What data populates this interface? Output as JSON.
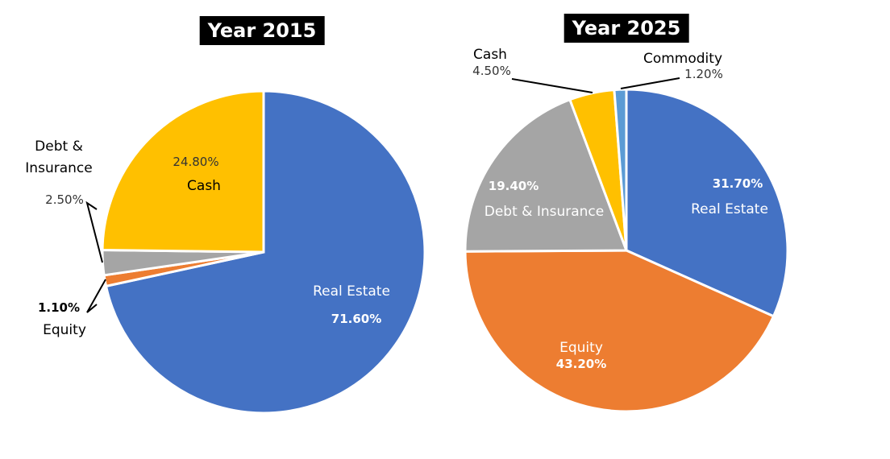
{
  "chart_data": [
    {
      "type": "pie",
      "title": "Year 2015",
      "categories": [
        "Real Estate",
        "Equity",
        "Debt & Insurance",
        "Cash"
      ],
      "values": [
        71.6,
        1.1,
        2.5,
        24.8
      ],
      "value_labels": [
        "71.60%",
        "1.10%",
        "2.50%",
        "24.80%"
      ],
      "colors": [
        "#4472c4",
        "#ed7d31",
        "#a5a5a5",
        "#ffc000"
      ]
    },
    {
      "type": "pie",
      "title": "Year 2025",
      "categories": [
        "Real Estate",
        "Equity",
        "Debt & Insurance",
        "Cash",
        "Commodity"
      ],
      "values": [
        31.7,
        43.2,
        19.4,
        4.5,
        1.2
      ],
      "value_labels": [
        "31.70%",
        "43.20%",
        "19.40%",
        "4.50%",
        "1.20%"
      ],
      "colors": [
        "#4472c4",
        "#ed7d31",
        "#a5a5a5",
        "#ffc000",
        "#5b9bd5"
      ]
    }
  ]
}
